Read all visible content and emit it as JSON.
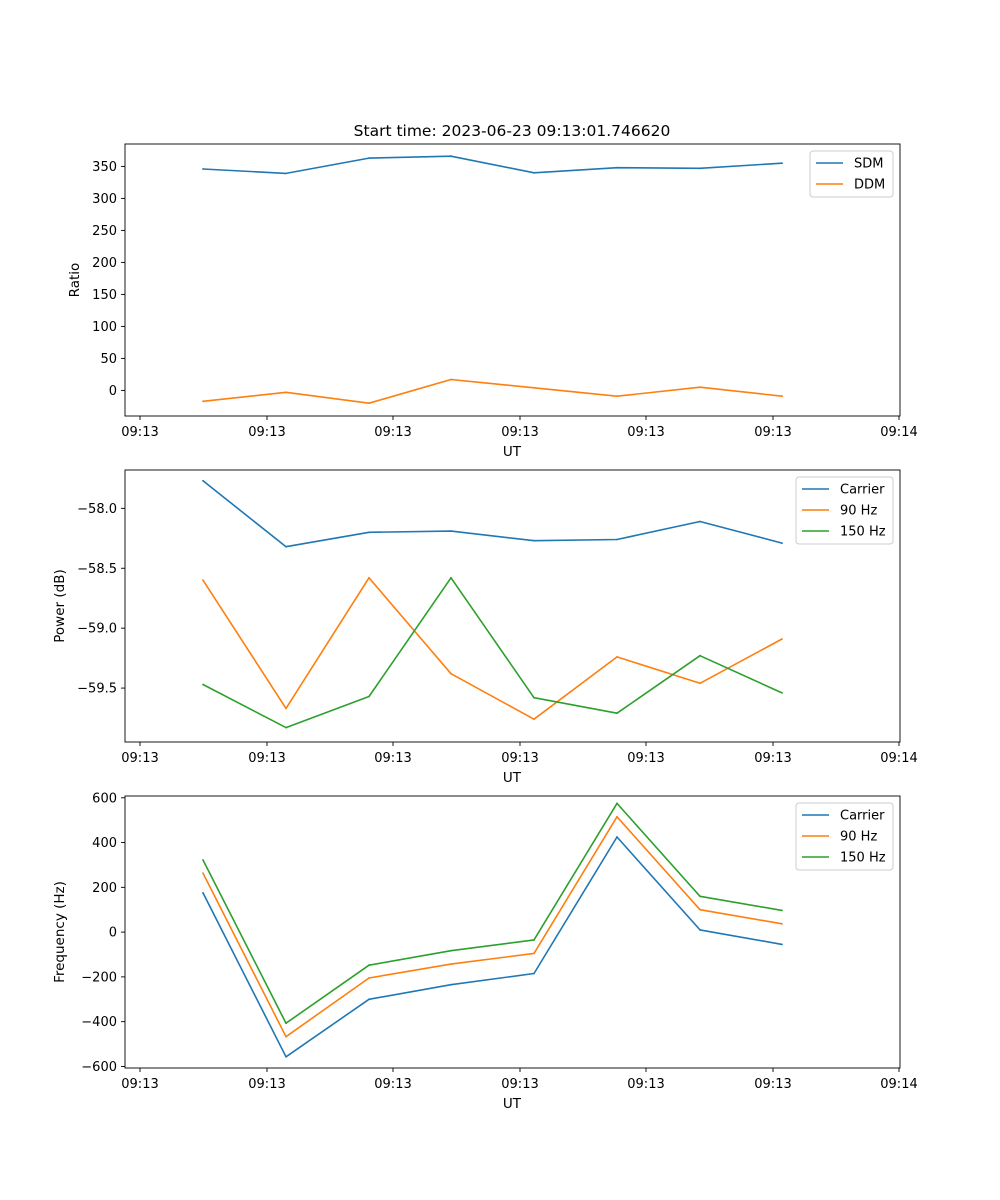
{
  "figure": {
    "title": "Start time: 2023-06-23 09:13:01.746620"
  },
  "chart_data": [
    {
      "type": "line",
      "ylabel": "Ratio",
      "xlabel": "UT",
      "x_tick_labels": [
        "09:13",
        "09:13",
        "09:13",
        "09:13",
        "09:13",
        "09:13",
        "09:14"
      ],
      "y_ticks": [
        0,
        50,
        100,
        150,
        200,
        250,
        300,
        350
      ],
      "ylim": [
        -40,
        385
      ],
      "legend_position": "upper right",
      "series": [
        {
          "name": "SDM",
          "color": "#1f77b4",
          "values": [
            346,
            339,
            363,
            366,
            340,
            348,
            347,
            355
          ]
        },
        {
          "name": "DDM",
          "color": "#ff7f0e",
          "values": [
            -17,
            -3,
            -20,
            17,
            4,
            -9,
            5,
            -9
          ]
        }
      ]
    },
    {
      "type": "line",
      "ylabel": "Power (dB)",
      "xlabel": "UT",
      "x_tick_labels": [
        "09:13",
        "09:13",
        "09:13",
        "09:13",
        "09:13",
        "09:13",
        "09:14"
      ],
      "y_ticks": [
        -58.0,
        -58.5,
        -59.0,
        -59.5
      ],
      "y_tick_labels": [
        "−58.0",
        "−58.5",
        "−59.0",
        "−59.5"
      ],
      "ylim": [
        -59.95,
        -57.68
      ],
      "legend_position": "upper right",
      "series": [
        {
          "name": "Carrier",
          "color": "#1f77b4",
          "values": [
            -57.77,
            -58.32,
            -58.2,
            -58.19,
            -58.27,
            -58.26,
            -58.11,
            -58.29
          ]
        },
        {
          "name": "90 Hz",
          "color": "#ff7f0e",
          "values": [
            -58.6,
            -59.67,
            -58.58,
            -59.38,
            -59.76,
            -59.24,
            -59.46,
            -59.09
          ]
        },
        {
          "name": "150 Hz",
          "color": "#2ca02c",
          "values": [
            -59.47,
            -59.83,
            -59.57,
            -58.58,
            -59.58,
            -59.71,
            -59.23,
            -59.54
          ]
        }
      ]
    },
    {
      "type": "line",
      "ylabel": "Frequency (Hz)",
      "xlabel": "UT",
      "x_tick_labels": [
        "09:13",
        "09:13",
        "09:13",
        "09:13",
        "09:13",
        "09:13",
        "09:14"
      ],
      "y_ticks": [
        -600,
        -400,
        -200,
        0,
        200,
        400,
        600
      ],
      "y_tick_labels": [
        "−600",
        "−400",
        "−200",
        "0",
        "200",
        "400",
        "600"
      ],
      "ylim": [
        -607,
        608
      ],
      "legend_position": "upper right",
      "series": [
        {
          "name": "Carrier",
          "color": "#1f77b4",
          "values": [
            175,
            -557,
            -300,
            -235,
            -185,
            425,
            10,
            -55
          ]
        },
        {
          "name": "90 Hz",
          "color": "#ff7f0e",
          "values": [
            263,
            -467,
            -205,
            -143,
            -95,
            515,
            100,
            37
          ]
        },
        {
          "name": "150 Hz",
          "color": "#2ca02c",
          "values": [
            322,
            -407,
            -148,
            -83,
            -35,
            575,
            160,
            97
          ]
        }
      ]
    }
  ]
}
